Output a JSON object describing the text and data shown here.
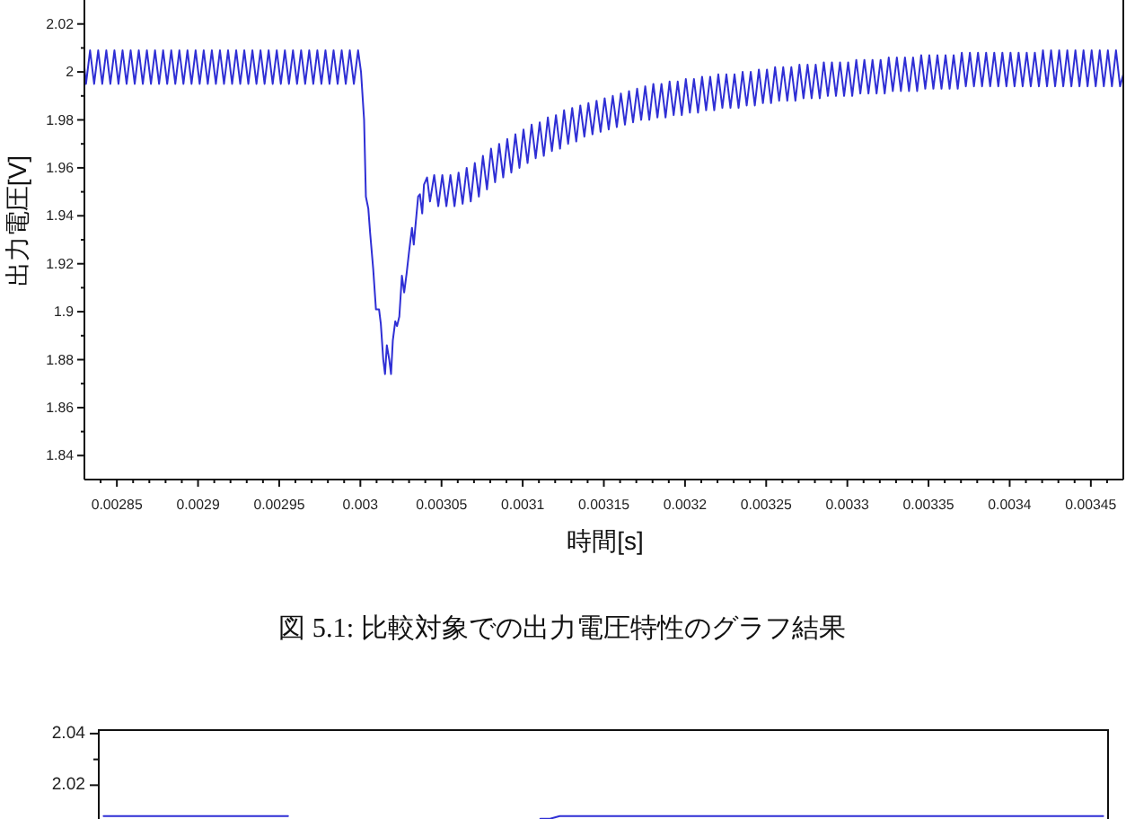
{
  "chart_data": [
    {
      "type": "line",
      "xlabel": "時間[s]",
      "ylabel": "出力電圧[V]",
      "annotations": [
        "図 5.1: 比較対象での出力電圧特性のグラフ結果"
      ],
      "line_style": "solid",
      "xlim": [
        0.00283,
        0.00347
      ],
      "ylim": [
        1.83,
        2.03
      ],
      "xticks": [
        {
          "value": 0.00284,
          "label": null
        },
        0.00285,
        {
          "value": 0.00286,
          "label": null
        },
        {
          "value": 0.00287,
          "label": null
        },
        {
          "value": 0.00288,
          "label": null
        },
        {
          "value": 0.00289,
          "label": null
        },
        0.0029,
        {
          "value": 0.00291,
          "label": null
        },
        {
          "value": 0.00292,
          "label": null
        },
        {
          "value": 0.00293,
          "label": null
        },
        {
          "value": 0.00294,
          "label": null
        },
        0.00295,
        {
          "value": 0.00296,
          "label": null
        },
        {
          "value": 0.00297,
          "label": null
        },
        {
          "value": 0.00298,
          "label": null
        },
        {
          "value": 0.00299,
          "label": null
        },
        0.003,
        {
          "value": 0.00301,
          "label": null
        },
        {
          "value": 0.00302,
          "label": null
        },
        {
          "value": 0.00303,
          "label": null
        },
        {
          "value": 0.00304,
          "label": null
        },
        0.00305,
        {
          "value": 0.00306,
          "label": null
        },
        {
          "value": 0.00307,
          "label": null
        },
        {
          "value": 0.00308,
          "label": null
        },
        {
          "value": 0.00309,
          "label": null
        },
        0.0031,
        {
          "value": 0.00311,
          "label": null
        },
        {
          "value": 0.00312,
          "label": null
        },
        {
          "value": 0.00313,
          "label": null
        },
        {
          "value": 0.00314,
          "label": null
        },
        0.00315,
        {
          "value": 0.00316,
          "label": null
        },
        {
          "value": 0.00317,
          "label": null
        },
        {
          "value": 0.00318,
          "label": null
        },
        {
          "value": 0.00319,
          "label": null
        },
        0.0032,
        {
          "value": 0.00321,
          "label": null
        },
        {
          "value": 0.00322,
          "label": null
        },
        {
          "value": 0.00323,
          "label": null
        },
        {
          "value": 0.00324,
          "label": null
        },
        0.00325,
        {
          "value": 0.00326,
          "label": null
        },
        {
          "value": 0.00327,
          "label": null
        },
        {
          "value": 0.00328,
          "label": null
        },
        {
          "value": 0.00329,
          "label": null
        },
        0.0033,
        {
          "value": 0.00331,
          "label": null
        },
        {
          "value": 0.00332,
          "label": null
        },
        {
          "value": 0.00333,
          "label": null
        },
        {
          "value": 0.00334,
          "label": null
        },
        0.00335,
        {
          "value": 0.00336,
          "label": null
        },
        {
          "value": 0.00337,
          "label": null
        },
        {
          "value": 0.00338,
          "label": null
        },
        {
          "value": 0.00339,
          "label": null
        },
        0.0034,
        {
          "value": 0.00341,
          "label": null
        },
        {
          "value": 0.00342,
          "label": null
        },
        {
          "value": 0.00343,
          "label": null
        },
        {
          "value": 0.00344,
          "label": null
        },
        0.00345,
        {
          "value": 0.00346,
          "label": null
        }
      ],
      "yticks": [
        1.84,
        {
          "value": 1.85,
          "label": null
        },
        1.86,
        {
          "value": 1.87,
          "label": null
        },
        1.88,
        {
          "value": 1.89,
          "label": null
        },
        1.9,
        {
          "value": 1.91,
          "label": null
        },
        1.92,
        {
          "value": 1.93,
          "label": null
        },
        1.94,
        {
          "value": 1.95,
          "label": null
        },
        1.96,
        {
          "value": 1.97,
          "label": null
        },
        1.98,
        {
          "value": 1.99,
          "label": null
        },
        2,
        {
          "value": 2.01,
          "label": null
        },
        2.02
      ],
      "x": [
        0.00283,
        0.002831,
        0.0028335,
        0.002836,
        0.0028385,
        0.002841,
        0.0028435,
        0.002846,
        0.0028485,
        0.002851,
        0.0028535,
        0.002856,
        0.0028585,
        0.002861,
        0.0028635,
        0.002866,
        0.0028685,
        0.002871,
        0.0028735,
        0.002876,
        0.0028785,
        0.002881,
        0.0028835,
        0.002886,
        0.0028885,
        0.002891,
        0.0028935,
        0.002896,
        0.0028985,
        0.002901,
        0.0029035,
        0.002906,
        0.0029085,
        0.002911,
        0.0029135,
        0.002916,
        0.0029185,
        0.002921,
        0.0029235,
        0.002926,
        0.0029285,
        0.002931,
        0.0029335,
        0.002936,
        0.0029385,
        0.002941,
        0.0029435,
        0.002946,
        0.0029485,
        0.002951,
        0.0029535,
        0.002956,
        0.0029585,
        0.002961,
        0.0029635,
        0.002966,
        0.0029685,
        0.002971,
        0.0029735,
        0.002976,
        0.0029785,
        0.002981,
        0.0029835,
        0.002986,
        0.0029885,
        0.002991,
        0.0029935,
        0.002996,
        0.0029986,
        0.0030004,
        0.0030023,
        0.0030034,
        0.0030049,
        0.003006,
        0.0030079,
        0.0030096,
        0.0030115,
        0.0030126,
        0.0030141,
        0.0030152,
        0.0030163,
        0.0030178,
        0.0030189,
        0.00302,
        0.0030215,
        0.0030226,
        0.003024,
        0.0030256,
        0.003027,
        0.0030285,
        0.00303,
        0.0030318,
        0.0030329,
        0.0030345,
        0.0030356,
        0.0030367,
        0.0030381,
        0.0030392,
        0.0030411,
        0.0030429,
        0.0030455,
        0.003048,
        0.0030505,
        0.003053,
        0.0030555,
        0.003058,
        0.0030605,
        0.003063,
        0.0030655,
        0.003068,
        0.0030705,
        0.003073,
        0.0030755,
        0.003078,
        0.0030805,
        0.003083,
        0.0030855,
        0.003088,
        0.0030905,
        0.003093,
        0.0030955,
        0.003098,
        0.0031005,
        0.003103,
        0.0031055,
        0.003108,
        0.0031105,
        0.003113,
        0.0031155,
        0.003118,
        0.0031205,
        0.003123,
        0.0031255,
        0.003128,
        0.0031305,
        0.003133,
        0.0031355,
        0.003138,
        0.0031405,
        0.003143,
        0.0031455,
        0.003148,
        0.0031505,
        0.003153,
        0.0031555,
        0.003158,
        0.0031605,
        0.003163,
        0.0031655,
        0.003168,
        0.0031705,
        0.003173,
        0.0031755,
        0.003178,
        0.0031805,
        0.003183,
        0.0031855,
        0.003188,
        0.0031905,
        0.003193,
        0.0031955,
        0.003198,
        0.0032005,
        0.003203,
        0.0032055,
        0.003208,
        0.0032105,
        0.003213,
        0.0032155,
        0.003218,
        0.0032205,
        0.003223,
        0.0032255,
        0.003228,
        0.0032305,
        0.003233,
        0.0032355,
        0.003238,
        0.0032405,
        0.003243,
        0.0032455,
        0.003248,
        0.0032505,
        0.003253,
        0.0032555,
        0.003258,
        0.0032605,
        0.003263,
        0.0032655,
        0.003268,
        0.0032705,
        0.003273,
        0.0032755,
        0.003278,
        0.0032805,
        0.003283,
        0.0032855,
        0.003288,
        0.0032905,
        0.003293,
        0.0032955,
        0.003298,
        0.0033005,
        0.003303,
        0.0033055,
        0.003308,
        0.0033105,
        0.003313,
        0.0033155,
        0.003318,
        0.0033205,
        0.003323,
        0.0033255,
        0.003328,
        0.0033305,
        0.003333,
        0.0033355,
        0.003338,
        0.0033405,
        0.003343,
        0.0033455,
        0.003348,
        0.0033505,
        0.003353,
        0.0033555,
        0.003358,
        0.0033605,
        0.003363,
        0.0033655,
        0.003368,
        0.0033705,
        0.003373,
        0.0033755,
        0.003378,
        0.0033805,
        0.003383,
        0.0033855,
        0.003388,
        0.0033905,
        0.003393,
        0.0033955,
        0.003398,
        0.0034005,
        0.003403,
        0.0034055,
        0.003408,
        0.0034105,
        0.003413,
        0.0034155,
        0.003418,
        0.0034205,
        0.003423,
        0.0034255,
        0.003428,
        0.0034305,
        0.003433,
        0.0034355,
        0.003438,
        0.0034405,
        0.003443,
        0.0034455,
        0.003448,
        0.0034505,
        0.003453,
        0.0034555,
        0.003458,
        0.0034605,
        0.003463,
        0.0034655,
        0.003468,
        0.00347
      ],
      "series": [
        {
          "color": "#2f2fd5",
          "values": [
            2.002,
            1.995,
            2.009,
            1.995,
            2.009,
            1.995,
            2.009,
            1.995,
            2.009,
            1.995,
            2.009,
            1.995,
            2.009,
            1.995,
            2.009,
            1.995,
            2.009,
            1.995,
            2.009,
            1.995,
            2.009,
            1.995,
            2.009,
            1.995,
            2.009,
            1.995,
            2.009,
            1.995,
            2.009,
            1.995,
            2.009,
            1.995,
            2.009,
            1.995,
            2.009,
            1.995,
            2.009,
            1.995,
            2.009,
            1.995,
            2.009,
            1.995,
            2.009,
            1.995,
            2.009,
            1.995,
            2.009,
            1.995,
            2.009,
            1.995,
            2.009,
            1.995,
            2.009,
            1.995,
            2.009,
            1.995,
            2.009,
            1.995,
            2.009,
            1.995,
            2.009,
            1.995,
            2.009,
            1.995,
            2.009,
            1.995,
            2.009,
            1.995,
            2.009,
            2.0,
            1.98,
            1.948,
            1.943,
            1.933,
            1.918,
            1.901,
            1.901,
            1.895,
            1.88,
            1.874,
            1.886,
            1.88,
            1.874,
            1.888,
            1.896,
            1.894,
            1.898,
            1.915,
            1.908,
            1.916,
            1.925,
            1.935,
            1.928,
            1.94,
            1.948,
            1.949,
            1.941,
            1.953,
            1.956,
            1.946,
            1.957,
            1.944,
            1.957,
            1.944,
            1.957,
            1.944,
            1.958,
            1.945,
            1.96,
            1.946,
            1.962,
            1.948,
            1.965,
            1.951,
            1.968,
            1.954,
            1.97,
            1.956,
            1.972,
            1.958,
            1.974,
            1.96,
            1.976,
            1.962,
            1.978,
            1.964,
            1.979,
            1.965,
            1.981,
            1.967,
            1.982,
            1.968,
            1.984,
            1.97,
            1.985,
            1.971,
            1.986,
            1.973,
            1.987,
            1.974,
            1.988,
            1.975,
            1.989,
            1.976,
            1.99,
            1.977,
            1.991,
            1.978,
            1.992,
            1.979,
            1.993,
            1.98,
            1.994,
            1.98,
            1.995,
            1.981,
            1.995,
            1.981,
            1.996,
            1.982,
            1.996,
            1.982,
            1.997,
            1.983,
            1.997,
            1.983,
            1.998,
            1.984,
            1.998,
            1.984,
            1.999,
            1.985,
            1.999,
            1.985,
            1.999,
            1.985,
            2.0,
            1.986,
            2.0,
            1.986,
            2.001,
            1.987,
            2.001,
            1.987,
            2.002,
            1.988,
            2.002,
            1.988,
            2.002,
            1.988,
            2.003,
            1.989,
            2.003,
            1.989,
            2.003,
            1.989,
            2.004,
            1.99,
            2.004,
            1.99,
            2.004,
            1.99,
            2.004,
            1.99,
            2.005,
            1.991,
            2.005,
            1.991,
            2.005,
            1.991,
            2.005,
            1.991,
            2.006,
            1.992,
            2.006,
            1.992,
            2.006,
            1.992,
            2.006,
            1.992,
            2.007,
            1.993,
            2.007,
            1.993,
            2.007,
            1.993,
            2.007,
            1.993,
            2.007,
            1.993,
            2.008,
            1.994,
            2.008,
            1.994,
            2.008,
            1.994,
            2.008,
            1.994,
            2.008,
            1.994,
            2.008,
            1.994,
            2.008,
            1.994,
            2.008,
            1.994,
            2.008,
            1.994,
            2.008,
            1.994,
            2.009,
            1.994,
            2.009,
            1.994,
            2.009,
            1.994,
            2.009,
            1.994,
            2.009,
            1.994,
            2.009,
            1.994,
            2.009,
            1.994,
            2.009,
            1.994,
            2.009,
            1.994,
            2.009,
            1.994,
            1.999
          ]
        }
      ]
    },
    {
      "type": "line",
      "tick_labels": "y",
      "line_style": "solid",
      "ylim": [
        2.0069,
        2.0417
      ],
      "yticks": [
        2.04,
        {
          "value": 2.03,
          "label": null
        },
        2.02
      ],
      "categories": [
        null,
        null,
        null,
        null,
        null,
        null,
        null,
        null,
        null,
        null,
        null,
        null,
        null,
        null,
        null,
        null,
        null,
        null,
        null,
        null,
        null,
        null,
        null,
        null,
        null,
        null,
        null,
        null,
        null,
        null,
        null,
        null,
        null,
        null,
        null,
        null,
        null,
        null,
        null,
        null,
        null,
        null,
        null,
        null,
        null,
        null,
        null,
        null,
        null,
        null,
        null,
        null,
        null,
        null,
        null,
        null,
        null,
        null,
        null,
        null,
        null,
        null,
        null,
        null,
        null,
        null,
        null,
        null,
        null,
        null,
        null,
        null,
        null,
        null,
        null,
        null,
        null,
        null,
        null,
        null,
        null,
        null,
        null,
        null,
        null,
        null,
        null,
        null,
        null,
        null,
        null,
        null,
        null,
        null,
        null,
        null,
        null,
        null,
        null,
        null,
        null,
        null,
        null,
        null
      ],
      "series": [
        {
          "color": "#2f2fd5",
          "values": [
            2.008,
            2.008,
            2.008,
            2.008,
            2.008,
            2.008,
            2.008,
            2.008,
            2.008,
            2.008,
            2.008,
            2.008,
            2.008,
            2.008,
            2.008,
            2.008,
            2.008,
            2.008,
            2.008,
            2.008,
            null,
            null,
            null,
            null,
            null,
            null,
            null,
            null,
            null,
            null,
            null,
            null,
            null,
            null,
            null,
            null,
            null,
            null,
            null,
            null,
            null,
            null,
            null,
            null,
            null,
            null,
            null,
            null,
            null,
            null,
            null,
            null,
            null,
            null,
            null,
            null,
            null,
            null,
            null,
            null,
            null,
            null,
            null,
            null,
            null,
            null,
            null,
            null,
            null,
            null,
            null,
            null,
            null,
            null,
            null,
            null,
            null,
            null,
            null,
            null,
            null,
            null,
            null,
            null,
            null,
            null,
            null,
            null,
            null,
            null,
            null,
            null,
            null,
            null,
            null,
            null,
            null,
            null,
            null,
            null,
            null,
            null,
            null,
            null
          ]
        },
        {
          "color": "#2f2fd5",
          "values": [
            null,
            null,
            null,
            null,
            null,
            null,
            null,
            null,
            null,
            null,
            null,
            null,
            null,
            null,
            null,
            null,
            null,
            null,
            null,
            null,
            null,
            null,
            null,
            null,
            null,
            null,
            null,
            null,
            null,
            null,
            null,
            null,
            null,
            null,
            null,
            null,
            null,
            null,
            null,
            null,
            null,
            null,
            null,
            null,
            null,
            2.007,
            2.007,
            2.008,
            2.008,
            2.008,
            2.008,
            2.008,
            2.008,
            2.008,
            2.008,
            2.008,
            2.008,
            2.008,
            2.008,
            2.008,
            2.008,
            2.008,
            2.008,
            2.008,
            2.008,
            2.008,
            2.008,
            2.008,
            2.008,
            2.008,
            2.008,
            2.008,
            2.008,
            2.008,
            2.008,
            2.008,
            2.008,
            2.008,
            2.008,
            2.008,
            2.008,
            2.008,
            2.008,
            2.008,
            2.008,
            2.008,
            2.008,
            2.008,
            2.008,
            2.008,
            2.008,
            2.008,
            2.008,
            2.008,
            2.008,
            2.008,
            2.008,
            2.008,
            2.008,
            2.008,
            2.008,
            2.008,
            2.008,
            2.008
          ]
        }
      ]
    }
  ]
}
